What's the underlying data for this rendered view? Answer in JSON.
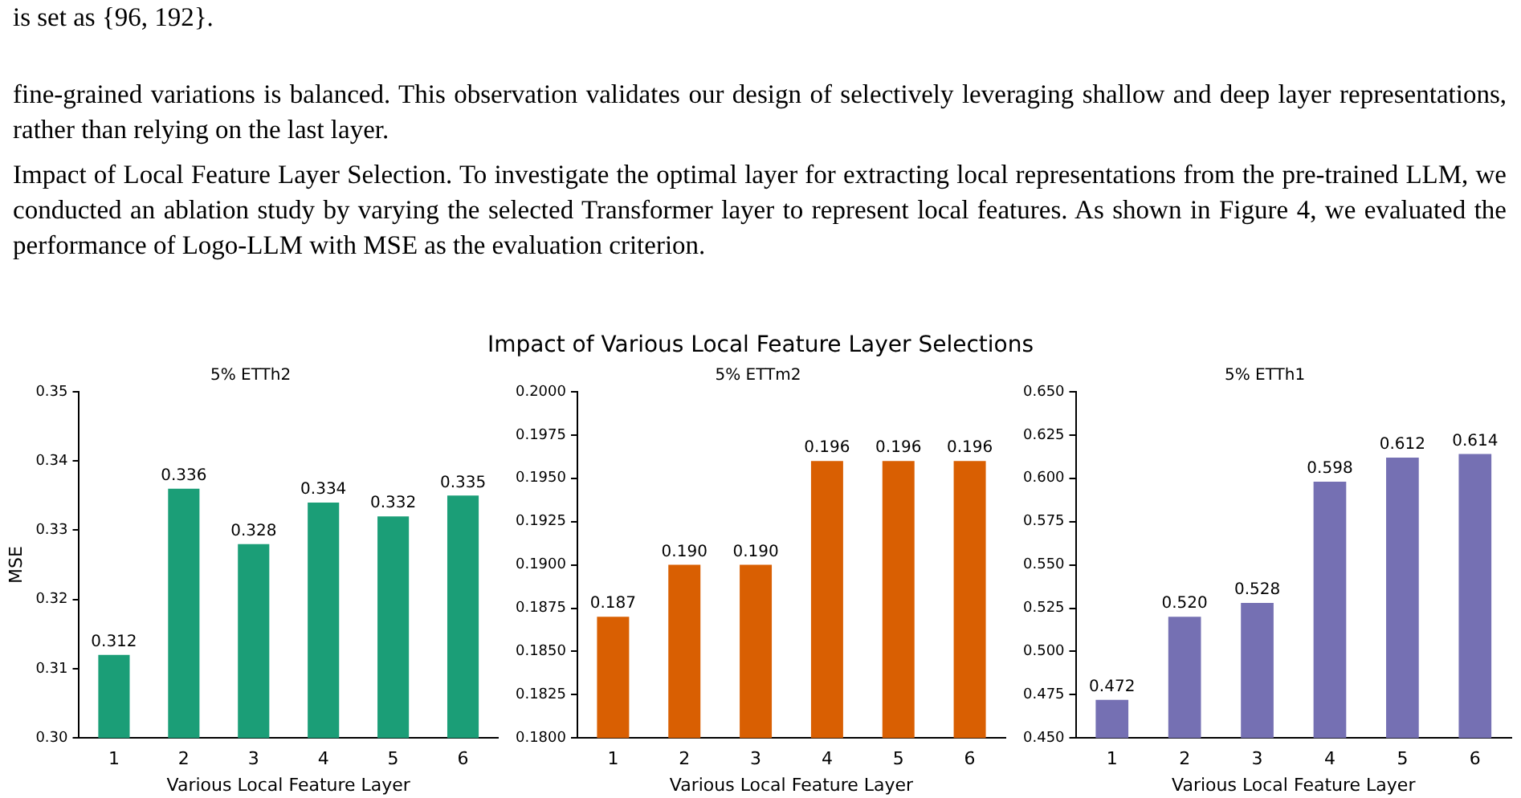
{
  "chart_data": [
    {
      "type": "bar",
      "title": "5% ETTh2",
      "xlabel": "Various Local Feature Layer",
      "ylabel": "MSE",
      "categories": [
        "1",
        "2",
        "3",
        "4",
        "5",
        "6"
      ],
      "values": [
        0.312,
        0.336,
        0.328,
        0.334,
        0.332,
        0.335
      ],
      "color": "#1b9e77",
      "value_labels": [
        "0.312",
        "0.336",
        "0.328",
        "0.334",
        "0.332",
        "0.335"
      ],
      "ylim": [
        0.3,
        0.35
      ],
      "yticks": [
        {
          "value": 0.3,
          "label": "0.30"
        },
        {
          "value": 0.31,
          "label": "0.31"
        },
        {
          "value": 0.32,
          "label": "0.32"
        },
        {
          "value": 0.33,
          "label": "0.33"
        },
        {
          "value": 0.34,
          "label": "0.34"
        },
        {
          "value": 0.35,
          "label": "0.35"
        }
      ],
      "grid": false,
      "legend": false,
      "annotations": [
        "is set as {96, 192}.",
        "fine-grained variations is balanced. This observation validates our design of selectively leveraging shallow and deep layer representations, rather than relying on the last layer.",
        "Impact of Local Feature Layer Selection. To investigate the optimal layer for extracting local representations from the pre-trained LLM, we conducted an ablation study by varying the selected Transformer layer to represent local features. As shown in Figure 4, we evaluated the performance of Logo-LLM with MSE as the evaluation criterion.",
        "Impact of Various Local Feature Layer Selections"
      ]
    },
    {
      "type": "bar",
      "title": "5% ETTm2",
      "xlabel": "Various Local Feature Layer",
      "categories": [
        "1",
        "2",
        "3",
        "4",
        "5",
        "6"
      ],
      "values": [
        0.187,
        0.19,
        0.19,
        0.196,
        0.196,
        0.196
      ],
      "color": "#d95f02",
      "value_labels": [
        "0.187",
        "0.190",
        "0.190",
        "0.196",
        "0.196",
        "0.196"
      ],
      "ylim": [
        0.18,
        0.2
      ],
      "yticks": [
        {
          "value": 0.18,
          "label": "0.1800"
        },
        {
          "value": 0.1825,
          "label": "0.1825"
        },
        {
          "value": 0.185,
          "label": "0.1850"
        },
        {
          "value": 0.1875,
          "label": "0.1875"
        },
        {
          "value": 0.19,
          "label": "0.1900"
        },
        {
          "value": 0.1925,
          "label": "0.1925"
        },
        {
          "value": 0.195,
          "label": "0.1950"
        },
        {
          "value": 0.1975,
          "label": "0.1975"
        },
        {
          "value": 0.2,
          "label": "0.2000"
        }
      ],
      "grid": false,
      "legend": false
    },
    {
      "type": "bar",
      "title": "5% ETTh1",
      "xlabel": "Various Local Feature Layer",
      "categories": [
        "1",
        "2",
        "3",
        "4",
        "5",
        "6"
      ],
      "values": [
        0.472,
        0.52,
        0.528,
        0.598,
        0.612,
        0.614
      ],
      "color": "#7570b3",
      "value_labels": [
        "0.472",
        "0.520",
        "0.528",
        "0.598",
        "0.612",
        "0.614"
      ],
      "ylim": [
        0.45,
        0.65
      ],
      "yticks": [
        {
          "value": 0.45,
          "label": "0.450"
        },
        {
          "value": 0.475,
          "label": "0.475"
        },
        {
          "value": 0.5,
          "label": "0.500"
        },
        {
          "value": 0.525,
          "label": "0.525"
        },
        {
          "value": 0.55,
          "label": "0.550"
        },
        {
          "value": 0.575,
          "label": "0.575"
        },
        {
          "value": 0.6,
          "label": "0.600"
        },
        {
          "value": 0.625,
          "label": "0.625"
        },
        {
          "value": 0.65,
          "label": "0.650"
        }
      ],
      "grid": false,
      "legend": false
    }
  ]
}
